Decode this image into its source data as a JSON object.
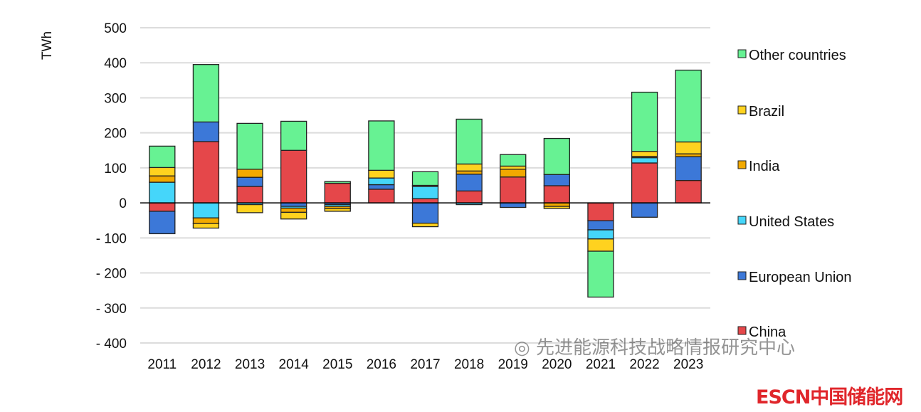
{
  "chart_data": {
    "type": "bar",
    "stacked": true,
    "ylabel": "TWh",
    "xlabel": "",
    "ylim": [
      -400,
      500
    ],
    "yticks": [
      500,
      400,
      300,
      200,
      100,
      0,
      -100,
      -200,
      -300,
      -400
    ],
    "ytick_labels": [
      "500",
      "400",
      "300",
      "200",
      "100",
      "0",
      "- 100",
      "- 200",
      "- 300",
      "- 400"
    ],
    "grid": true,
    "legend_position": "right",
    "categories": [
      "2011",
      "2012",
      "2013",
      "2014",
      "2015",
      "2016",
      "2017",
      "2018",
      "2019",
      "2020",
      "2021",
      "2022",
      "2023"
    ],
    "series": [
      {
        "name": "China",
        "color": "#E5474A",
        "values": [
          -24,
          175,
          47,
          150,
          56,
          39,
          12,
          34,
          74,
          49,
          -51,
          114,
          64
        ]
      },
      {
        "name": "European Union",
        "color": "#3C78D8",
        "values": [
          -64,
          56,
          26,
          -10,
          -5,
          13,
          -58,
          48,
          -13,
          32,
          -26,
          -41,
          68
        ]
      },
      {
        "name": "United States",
        "color": "#45D6FA",
        "values": [
          59,
          -43,
          -5,
          -5,
          -5,
          19,
          35,
          -5,
          0,
          0,
          -26,
          15,
          0
        ]
      },
      {
        "name": "India",
        "color": "#F2A900",
        "values": [
          18,
          -16,
          23,
          -12,
          -6,
          0,
          3,
          9,
          22,
          -10,
          0,
          4,
          8
        ]
      },
      {
        "name": "Brazil",
        "color": "#FFD21F",
        "values": [
          24,
          -13,
          -23,
          -19,
          -8,
          22,
          -10,
          20,
          9,
          -6,
          -35,
          14,
          34
        ]
      },
      {
        "name": "Other countries",
        "color": "#67F293",
        "values": [
          61,
          164,
          131,
          83,
          5,
          141,
          39,
          128,
          33,
          103,
          -131,
          169,
          205
        ]
      }
    ]
  },
  "watermark": "先进能源科技战略情报研究中心",
  "logo": "ESCN中国储能网"
}
